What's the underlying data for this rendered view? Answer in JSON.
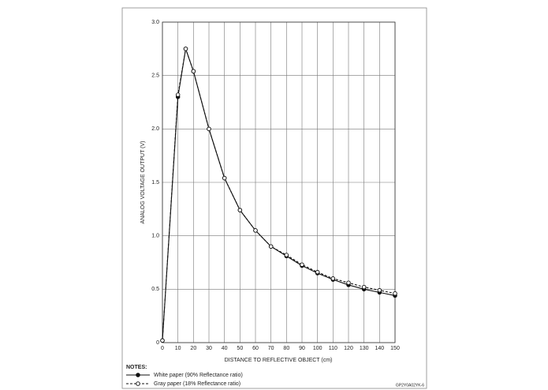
{
  "chart_data": {
    "type": "line",
    "xlabel": "DISTANCE TO REFLECTIVE OBJECT (cm)",
    "ylabel": "ANALOG VOLTAGE OUTPUT (V)",
    "notes_title": "NOTES:",
    "code": "GP2Y0A02YK-6",
    "x": [
      0,
      10,
      15,
      20,
      30,
      40,
      50,
      60,
      70,
      80,
      90,
      100,
      110,
      120,
      130,
      140,
      150
    ],
    "series": [
      {
        "name": "White paper (90% Reflectance ratio)",
        "color": "#111111",
        "dashed": false,
        "marker": "filled",
        "values": [
          0.02,
          2.3,
          2.75,
          2.54,
          2.0,
          1.54,
          1.24,
          1.05,
          0.9,
          0.81,
          0.72,
          0.65,
          0.59,
          0.54,
          0.5,
          0.47,
          0.44
        ]
      },
      {
        "name": "Gray paper (18% Reflectance ratio)",
        "color": "#111111",
        "dashed": true,
        "marker": "open",
        "values": [
          0.02,
          2.32,
          2.75,
          2.54,
          2.0,
          1.54,
          1.24,
          1.05,
          0.9,
          0.82,
          0.73,
          0.66,
          0.6,
          0.56,
          0.52,
          0.49,
          0.46
        ]
      }
    ],
    "xlim": [
      0,
      150
    ],
    "xticks": [
      0,
      10,
      20,
      30,
      40,
      50,
      60,
      70,
      80,
      90,
      100,
      110,
      120,
      130,
      140,
      150
    ],
    "ylim": [
      0,
      3
    ],
    "yticks": [
      0,
      0.5,
      {
        "value": 1,
        "label": "1.0"
      },
      1.5,
      {
        "value": 2,
        "label": "2.0"
      },
      2.5,
      {
        "value": 3,
        "label": "3.0"
      }
    ],
    "grid": true
  }
}
